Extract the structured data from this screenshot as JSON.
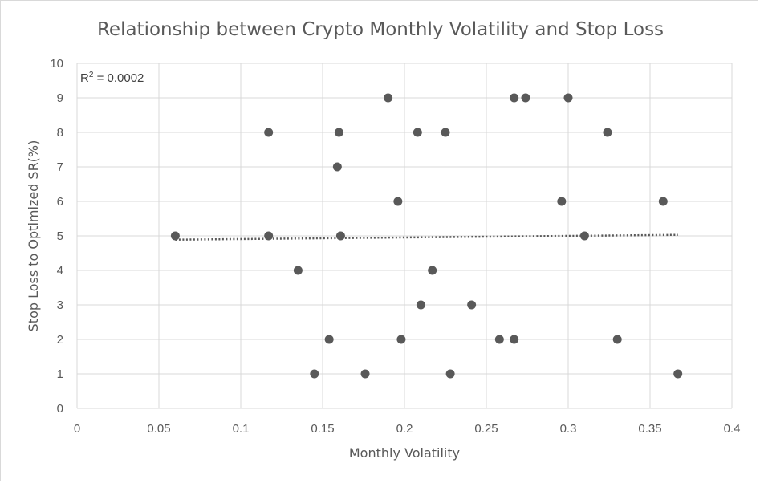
{
  "chart_data": {
    "type": "scatter",
    "title": "Relationship between Crypto Monthly Volatility and Stop Loss",
    "xlabel": "Monthly Volatility",
    "ylabel": "Stop Loss to Optimized SR(%)",
    "xlim": [
      0,
      0.4
    ],
    "ylim": [
      0,
      10
    ],
    "x_ticks": [
      "0",
      "0.05",
      "0.1",
      "0.15",
      "0.2",
      "0.25",
      "0.3",
      "0.35",
      "0.4"
    ],
    "y_ticks": [
      "0",
      "1",
      "2",
      "3",
      "4",
      "5",
      "6",
      "7",
      "8",
      "9",
      "10"
    ],
    "grid": true,
    "legend": "none",
    "marker_color": "#595959",
    "trendline": {
      "type": "linear",
      "style": "dotted",
      "color": "#595959",
      "x_start": 0.06,
      "y_start": 4.89,
      "x_end": 0.367,
      "y_end": 5.03,
      "r_squared_label": "R² = 0.0002",
      "r_squared_base": "R",
      "r_squared_sup": "2",
      "r_squared_value": " = 0.0002"
    },
    "points": [
      {
        "x": 0.06,
        "y": 5
      },
      {
        "x": 0.117,
        "y": 8
      },
      {
        "x": 0.117,
        "y": 5
      },
      {
        "x": 0.135,
        "y": 4
      },
      {
        "x": 0.145,
        "y": 1
      },
      {
        "x": 0.154,
        "y": 2
      },
      {
        "x": 0.159,
        "y": 7
      },
      {
        "x": 0.16,
        "y": 8
      },
      {
        "x": 0.161,
        "y": 5
      },
      {
        "x": 0.176,
        "y": 1
      },
      {
        "x": 0.19,
        "y": 9
      },
      {
        "x": 0.196,
        "y": 6
      },
      {
        "x": 0.198,
        "y": 2
      },
      {
        "x": 0.208,
        "y": 8
      },
      {
        "x": 0.21,
        "y": 3
      },
      {
        "x": 0.217,
        "y": 4
      },
      {
        "x": 0.225,
        "y": 8
      },
      {
        "x": 0.228,
        "y": 1
      },
      {
        "x": 0.241,
        "y": 3
      },
      {
        "x": 0.258,
        "y": 2
      },
      {
        "x": 0.267,
        "y": 9
      },
      {
        "x": 0.267,
        "y": 2
      },
      {
        "x": 0.274,
        "y": 9
      },
      {
        "x": 0.296,
        "y": 6
      },
      {
        "x": 0.3,
        "y": 9
      },
      {
        "x": 0.31,
        "y": 5
      },
      {
        "x": 0.324,
        "y": 8
      },
      {
        "x": 0.33,
        "y": 2
      },
      {
        "x": 0.358,
        "y": 6
      },
      {
        "x": 0.367,
        "y": 1
      }
    ]
  }
}
